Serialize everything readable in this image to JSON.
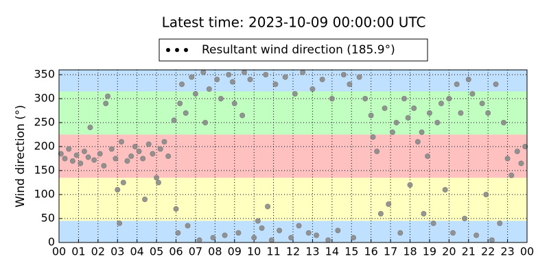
{
  "chart_data": {
    "type": "scatter",
    "title": "Latest time: 2023-10-09 00:00:00 UTC",
    "y_label": "Wind direction (°)",
    "legend_marker_color": "#000000",
    "grid": true,
    "bands": [
      {
        "from": 0,
        "to": 45,
        "color": "#c0e0ff"
      },
      {
        "from": 45,
        "to": 135,
        "color": "#ffffc0"
      },
      {
        "from": 135,
        "to": 225,
        "color": "#ffc0c0"
      },
      {
        "from": 225,
        "to": 315,
        "color": "#c0ffc0"
      },
      {
        "from": 315,
        "to": 360,
        "color": "#c0e0ff"
      }
    ],
    "xlim": [
      0,
      24
    ],
    "xticks": [
      {
        "value": 0,
        "label": "00"
      },
      {
        "value": 1,
        "label": "01"
      },
      {
        "value": 2,
        "label": "02"
      },
      {
        "value": 3,
        "label": "03"
      },
      {
        "value": 4,
        "label": "04"
      },
      {
        "value": 5,
        "label": "05"
      },
      {
        "value": 6,
        "label": "06"
      },
      {
        "value": 7,
        "label": "07"
      },
      {
        "value": 8,
        "label": "08"
      },
      {
        "value": 9,
        "label": "09"
      },
      {
        "value": 10,
        "label": "10"
      },
      {
        "value": 11,
        "label": "11"
      },
      {
        "value": 12,
        "label": "12"
      },
      {
        "value": 13,
        "label": "13"
      },
      {
        "value": 14,
        "label": "14"
      },
      {
        "value": 15,
        "label": "15"
      },
      {
        "value": 16,
        "label": "16"
      },
      {
        "value": 17,
        "label": "17"
      },
      {
        "value": 18,
        "label": "18"
      },
      {
        "value": 19,
        "label": "19"
      },
      {
        "value": 20,
        "label": "20"
      },
      {
        "value": 21,
        "label": "21"
      },
      {
        "value": 22,
        "label": "22"
      },
      {
        "value": 23,
        "label": "23"
      },
      {
        "value": 24,
        "label": "00"
      }
    ],
    "ylim": [
      0,
      360
    ],
    "yticks": [
      0,
      50,
      100,
      150,
      200,
      250,
      300,
      350
    ],
    "series": [
      {
        "name": "Resultant wind direction (185.9°)",
        "color": "#858585",
        "x": [
          0.1,
          0.3,
          0.5,
          0.7,
          0.9,
          1.1,
          1.3,
          1.5,
          1.6,
          1.8,
          2.1,
          2.3,
          2.4,
          2.5,
          2.7,
          2.9,
          3.0,
          3.1,
          3.2,
          3.3,
          3.5,
          3.7,
          3.9,
          4.1,
          4.3,
          4.4,
          4.6,
          4.8,
          5.0,
          5.1,
          5.2,
          5.4,
          5.6,
          5.9,
          6.0,
          6.1,
          6.2,
          6.3,
          6.5,
          6.6,
          6.8,
          7.0,
          7.2,
          7.4,
          7.5,
          7.7,
          7.9,
          8.1,
          8.3,
          8.5,
          8.7,
          8.9,
          9.0,
          9.2,
          9.4,
          9.5,
          9.8,
          10.0,
          10.2,
          10.4,
          10.6,
          10.7,
          10.9,
          11.1,
          11.3,
          11.6,
          11.9,
          12.1,
          12.3,
          12.5,
          12.8,
          13.0,
          13.2,
          13.5,
          13.8,
          14.0,
          14.3,
          14.6,
          14.9,
          15.1,
          15.4,
          15.7,
          16.0,
          16.1,
          16.3,
          16.5,
          16.7,
          16.9,
          17.1,
          17.3,
          17.5,
          17.7,
          17.9,
          18.0,
          18.2,
          18.4,
          18.6,
          18.7,
          18.9,
          19.0,
          19.2,
          19.4,
          19.6,
          19.8,
          20.0,
          20.2,
          20.4,
          20.6,
          20.8,
          21.0,
          21.2,
          21.4,
          21.7,
          21.9,
          22.0,
          22.2,
          22.4,
          22.6,
          22.8,
          23.0,
          23.2,
          23.5,
          23.7,
          23.9
        ],
        "values": [
          185,
          175,
          195,
          170,
          182,
          165,
          190,
          178,
          240,
          172,
          185,
          160,
          290,
          305,
          195,
          175,
          110,
          40,
          210,
          125,
          170,
          180,
          200,
          190,
          175,
          90,
          205,
          185,
          135,
          125,
          195,
          210,
          180,
          255,
          70,
          20,
          290,
          330,
          270,
          35,
          345,
          310,
          5,
          355,
          250,
          320,
          10,
          340,
          300,
          15,
          350,
          335,
          290,
          20,
          265,
          355,
          340,
          10,
          45,
          30,
          350,
          75,
          5,
          330,
          25,
          345,
          10,
          310,
          35,
          355,
          20,
          320,
          15,
          340,
          5,
          300,
          25,
          350,
          330,
          10,
          345,
          300,
          265,
          220,
          190,
          60,
          280,
          80,
          230,
          250,
          20,
          300,
          260,
          120,
          280,
          210,
          230,
          60,
          180,
          270,
          40,
          250,
          290,
          110,
          300,
          20,
          330,
          270,
          50,
          340,
          310,
          15,
          290,
          100,
          270,
          5,
          330,
          40,
          250,
          175,
          140,
          190,
          165,
          200
        ]
      }
    ]
  }
}
